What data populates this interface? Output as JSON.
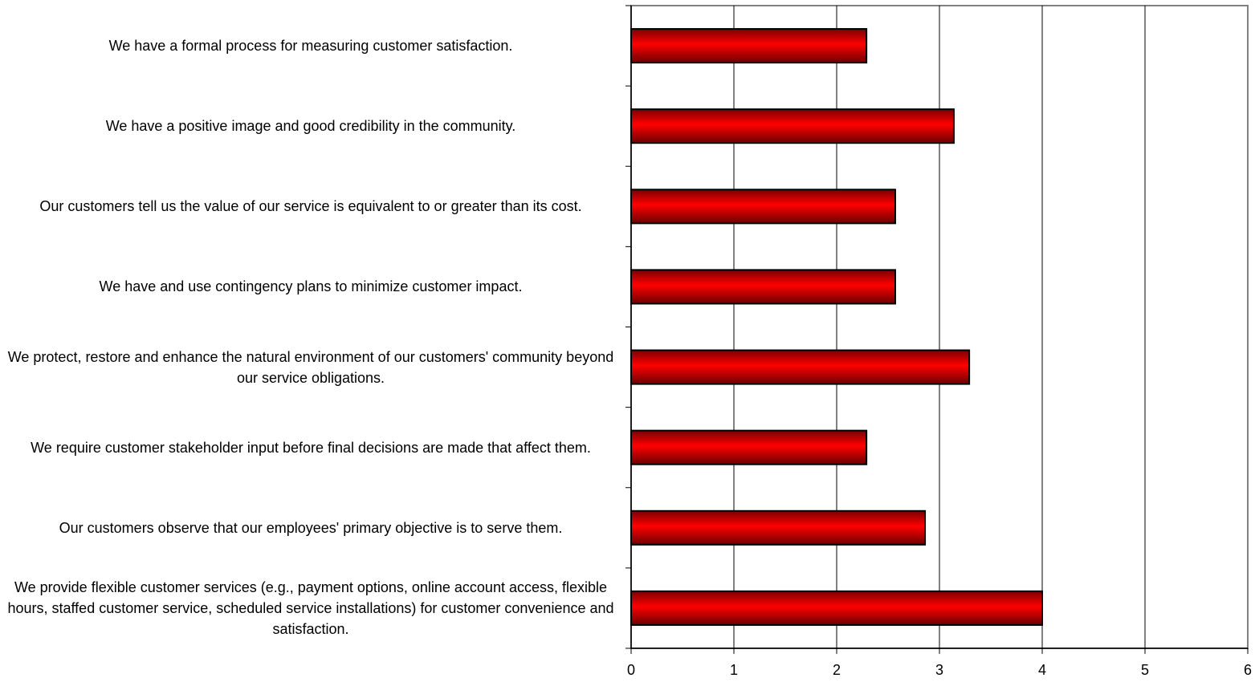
{
  "chart_data": {
    "type": "bar",
    "orientation": "horizontal",
    "title": "",
    "xlabel": "",
    "ylabel": "",
    "xlim": [
      0,
      6
    ],
    "x_ticks": [
      "0",
      "1",
      "2",
      "3",
      "4",
      "5",
      "6"
    ],
    "grid": "vertical",
    "legend": "none",
    "bar_color": "#e00000",
    "categories": [
      "We have a formal process for measuring customer satisfaction.",
      "We have a positive image and good credibility in the community.",
      "Our customers tell us the value of our service is equivalent to or greater than its cost.",
      "We have and use contingency plans to minimize customer impact.",
      "We protect, restore and enhance the natural environment of our customers' community beyond our service obligations.",
      "We require customer stakeholder input before final decisions are made that affect them.",
      "Our customers observe that our employees' primary objective is to serve them.",
      "We provide flexible customer services (e.g., payment options, online account access, flexible hours, staffed customer service, scheduled service installations) for customer convenience and satisfaction."
    ],
    "values": [
      2.29,
      3.14,
      2.57,
      2.57,
      3.29,
      2.29,
      2.86,
      4.0
    ]
  }
}
